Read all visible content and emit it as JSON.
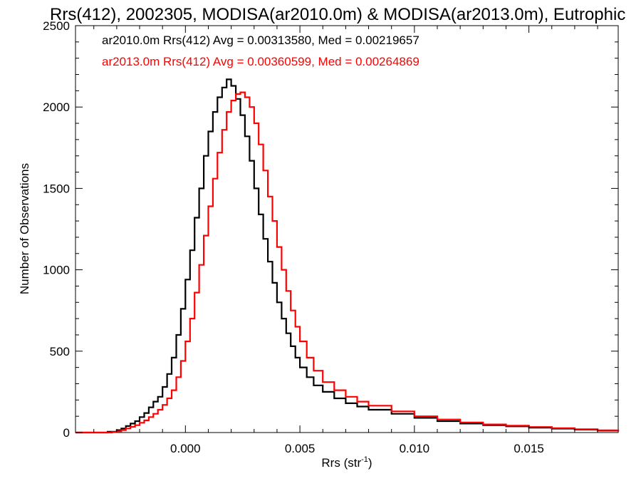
{
  "chart_data": {
    "type": "line",
    "title": "Rrs(412), 2002305, MODISA(ar2010.0m) & MODISA(ar2013.0m), Eutrophic",
    "xlabel": "Rrs (str",
    "xlabel_sup": "-1",
    "xlabel_close": ")",
    "ylabel": "Number of Observations",
    "xlim": [
      -0.0048,
      0.0189
    ],
    "ylim": [
      0,
      2500
    ],
    "x_ticks": [
      0.0,
      0.005,
      0.01,
      0.015
    ],
    "x_tick_labels": [
      "0.000",
      "0.005",
      "0.010",
      "0.015"
    ],
    "y_ticks": [
      0,
      500,
      1000,
      1500,
      2000,
      2500
    ],
    "y_tick_labels": [
      "0",
      "500",
      "1000",
      "1500",
      "2000",
      "2500"
    ],
    "grid": false,
    "legend_position": "top-left",
    "series": [
      {
        "name": "ar2010.0m",
        "annotation": "ar2010.0m Rrs(412) Avg = 0.00313580, Med = 0.00219657",
        "color": "#000000",
        "points": [
          [
            -0.0048,
            0
          ],
          [
            -0.004,
            0
          ],
          [
            -0.0034,
            5
          ],
          [
            -0.003,
            15
          ],
          [
            -0.0028,
            25
          ],
          [
            -0.0026,
            40
          ],
          [
            -0.0024,
            55
          ],
          [
            -0.0022,
            70
          ],
          [
            -0.002,
            95
          ],
          [
            -0.0018,
            120
          ],
          [
            -0.0016,
            155
          ],
          [
            -0.0014,
            190
          ],
          [
            -0.0012,
            220
          ],
          [
            -0.001,
            280
          ],
          [
            -0.0008,
            360
          ],
          [
            -0.0006,
            460
          ],
          [
            -0.0004,
            600
          ],
          [
            -0.0002,
            760
          ],
          [
            0.0,
            940
          ],
          [
            0.0002,
            1120
          ],
          [
            0.0004,
            1320
          ],
          [
            0.0006,
            1500
          ],
          [
            0.0008,
            1700
          ],
          [
            0.001,
            1850
          ],
          [
            0.0012,
            1970
          ],
          [
            0.0014,
            2060
          ],
          [
            0.0016,
            2120
          ],
          [
            0.0018,
            2170
          ],
          [
            0.002,
            2130
          ],
          [
            0.0022,
            2050
          ],
          [
            0.0024,
            1950
          ],
          [
            0.0026,
            1820
          ],
          [
            0.0028,
            1670
          ],
          [
            0.003,
            1500
          ],
          [
            0.0032,
            1340
          ],
          [
            0.0034,
            1190
          ],
          [
            0.0036,
            1050
          ],
          [
            0.0038,
            920
          ],
          [
            0.004,
            800
          ],
          [
            0.0042,
            700
          ],
          [
            0.0044,
            610
          ],
          [
            0.0046,
            530
          ],
          [
            0.0048,
            460
          ],
          [
            0.005,
            400
          ],
          [
            0.0053,
            340
          ],
          [
            0.0056,
            290
          ],
          [
            0.006,
            250
          ],
          [
            0.0065,
            210
          ],
          [
            0.007,
            180
          ],
          [
            0.0075,
            160
          ],
          [
            0.008,
            140
          ],
          [
            0.009,
            115
          ],
          [
            0.01,
            90
          ],
          [
            0.011,
            70
          ],
          [
            0.012,
            55
          ],
          [
            0.013,
            45
          ],
          [
            0.014,
            38
          ],
          [
            0.015,
            30
          ],
          [
            0.016,
            24
          ],
          [
            0.017,
            18
          ],
          [
            0.018,
            12
          ],
          [
            0.0189,
            8
          ]
        ]
      },
      {
        "name": "ar2013.0m",
        "annotation": "ar2013.0m Rrs(412) Avg = 0.00360599, Med = 0.00264869",
        "color": "#ff0000",
        "points": [
          [
            -0.0048,
            0
          ],
          [
            -0.004,
            0
          ],
          [
            -0.0032,
            3
          ],
          [
            -0.003,
            8
          ],
          [
            -0.0028,
            15
          ],
          [
            -0.0026,
            25
          ],
          [
            -0.0024,
            35
          ],
          [
            -0.0022,
            45
          ],
          [
            -0.002,
            60
          ],
          [
            -0.0018,
            75
          ],
          [
            -0.0016,
            95
          ],
          [
            -0.0014,
            115
          ],
          [
            -0.0012,
            140
          ],
          [
            -0.001,
            170
          ],
          [
            -0.0008,
            210
          ],
          [
            -0.0006,
            260
          ],
          [
            -0.0004,
            340
          ],
          [
            -0.0002,
            440
          ],
          [
            0.0,
            560
          ],
          [
            0.0002,
            700
          ],
          [
            0.0004,
            860
          ],
          [
            0.0006,
            1030
          ],
          [
            0.0008,
            1210
          ],
          [
            0.001,
            1390
          ],
          [
            0.0012,
            1560
          ],
          [
            0.0014,
            1720
          ],
          [
            0.0016,
            1860
          ],
          [
            0.0018,
            1970
          ],
          [
            0.002,
            2040
          ],
          [
            0.0022,
            2080
          ],
          [
            0.0024,
            2090
          ],
          [
            0.0026,
            2060
          ],
          [
            0.0028,
            2000
          ],
          [
            0.003,
            1900
          ],
          [
            0.0032,
            1770
          ],
          [
            0.0034,
            1610
          ],
          [
            0.0036,
            1450
          ],
          [
            0.0038,
            1300
          ],
          [
            0.004,
            1140
          ],
          [
            0.0042,
            1000
          ],
          [
            0.0044,
            870
          ],
          [
            0.0046,
            750
          ],
          [
            0.0048,
            650
          ],
          [
            0.005,
            560
          ],
          [
            0.0053,
            460
          ],
          [
            0.0056,
            380
          ],
          [
            0.006,
            310
          ],
          [
            0.0065,
            260
          ],
          [
            0.007,
            220
          ],
          [
            0.0075,
            190
          ],
          [
            0.008,
            165
          ],
          [
            0.009,
            130
          ],
          [
            0.01,
            100
          ],
          [
            0.011,
            80
          ],
          [
            0.012,
            62
          ],
          [
            0.013,
            50
          ],
          [
            0.014,
            42
          ],
          [
            0.015,
            34
          ],
          [
            0.016,
            27
          ],
          [
            0.017,
            20
          ],
          [
            0.018,
            14
          ],
          [
            0.0189,
            10
          ]
        ]
      }
    ]
  }
}
